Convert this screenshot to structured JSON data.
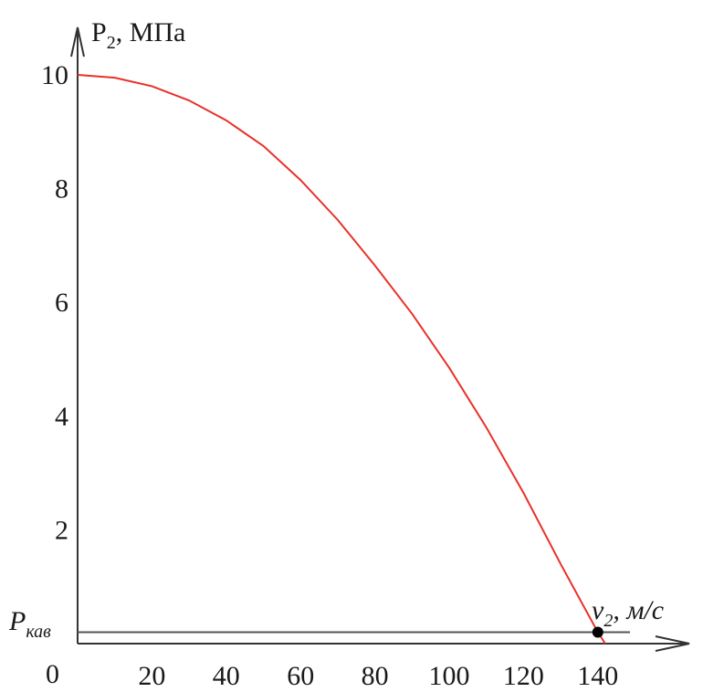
{
  "chart_data": {
    "type": "line",
    "title": "",
    "xlabel": {
      "main": "v",
      "sub": "2",
      "unit": ", м/с"
    },
    "ylabel": {
      "main": "P",
      "sub": "2",
      "unit": ", МПа"
    },
    "xlim": [
      0,
      150
    ],
    "ylim": [
      0,
      10.5
    ],
    "x_ticks": [
      20,
      40,
      60,
      80,
      100,
      120,
      140
    ],
    "y_ticks": [
      2,
      4,
      6,
      8,
      10
    ],
    "origin_label": "0",
    "series": [
      {
        "color": "#e8312a",
        "x": [
          0,
          10,
          20,
          30,
          40,
          50,
          60,
          70,
          80,
          90,
          100,
          110,
          120,
          130,
          140,
          142
        ],
        "y": [
          10,
          9.95,
          9.8,
          9.55,
          9.2,
          8.75,
          8.15,
          7.45,
          6.65,
          5.8,
          4.85,
          3.8,
          2.65,
          1.4,
          0.2,
          0
        ]
      }
    ],
    "reference_line": {
      "label_main": "P",
      "label_sub": "кав",
      "y": 0.2,
      "color": "#555555"
    },
    "marker": {
      "x": 140,
      "y": 0.2,
      "color": "#000000"
    },
    "grid": false
  }
}
